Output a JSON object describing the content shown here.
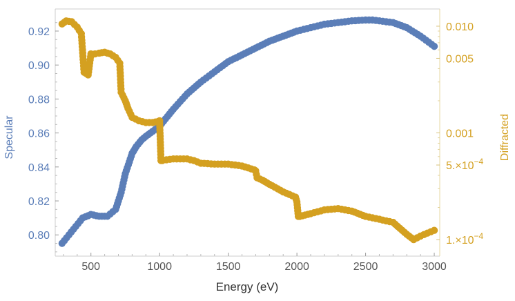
{
  "chart_data": {
    "type": "scatter",
    "title": "",
    "xlabel": "Energy (eV)",
    "ylabel_left": "Specular",
    "ylabel_right": "Diffracted",
    "xlim": [
      240,
      3040
    ],
    "ylim_left": [
      0.7875,
      0.933
    ],
    "ylim_right_log": [
      7e-05,
      0.0145
    ],
    "left_axis_color": "#5b7eb8",
    "right_axis_color": "#d4a020",
    "x_ticks": [
      500,
      1000,
      1500,
      2000,
      2500,
      3000
    ],
    "x_tick_labels": [
      "500",
      "1000",
      "1500",
      "2000",
      "2500",
      "3000"
    ],
    "left_ticks": [
      0.8,
      0.82,
      0.84,
      0.86,
      0.88,
      0.9,
      0.92
    ],
    "left_tick_labels": [
      "0.80",
      "0.82",
      "0.84",
      "0.86",
      "0.88",
      "0.90",
      "0.92"
    ],
    "right_ticks": [
      0.01,
      0.005,
      0.001,
      0.0005,
      0.0001
    ],
    "right_tick_labels": [
      {
        "mantissa": "0.010",
        "exp": ""
      },
      {
        "mantissa": "0.005",
        "exp": ""
      },
      {
        "mantissa": "0.001",
        "exp": ""
      },
      {
        "mantissa": "5.×10",
        "exp": "−4"
      },
      {
        "mantissa": "1.×10",
        "exp": "−4"
      }
    ],
    "series": [
      {
        "name": "Specular",
        "axis": "left",
        "color": "#5b7eb8",
        "x": [
          290,
          340,
          390,
          440,
          500,
          560,
          620,
          680,
          720,
          750,
          780,
          800,
          830,
          870,
          900,
          950,
          1000,
          1100,
          1200,
          1300,
          1400,
          1500,
          1600,
          1700,
          1800,
          1900,
          2000,
          2100,
          2200,
          2300,
          2400,
          2500,
          2550,
          2600,
          2700,
          2800,
          2900,
          3000
        ],
        "y": [
          0.795,
          0.8,
          0.805,
          0.81,
          0.812,
          0.811,
          0.811,
          0.815,
          0.825,
          0.836,
          0.843,
          0.848,
          0.852,
          0.856,
          0.858,
          0.861,
          0.864,
          0.874,
          0.883,
          0.89,
          0.896,
          0.902,
          0.906,
          0.91,
          0.914,
          0.917,
          0.92,
          0.922,
          0.924,
          0.925,
          0.926,
          0.9265,
          0.9265,
          0.926,
          0.925,
          0.922,
          0.917,
          0.911
        ]
      },
      {
        "name": "Diffracted",
        "axis": "right",
        "color": "#d4a020",
        "x": [
          290,
          320,
          360,
          400,
          430,
          450,
          480,
          500,
          530,
          560,
          600,
          640,
          680,
          710,
          720,
          750,
          770,
          800,
          850,
          900,
          950,
          990,
          1000,
          1010,
          1020,
          1050,
          1100,
          1200,
          1250,
          1300,
          1400,
          1500,
          1600,
          1690,
          1700,
          1710,
          1750,
          1800,
          1900,
          1990,
          2000,
          2010,
          2020,
          2100,
          2200,
          2300,
          2400,
          2500,
          2600,
          2700,
          2800,
          2850,
          2900,
          2950,
          3000
        ],
        "y": [
          0.0105,
          0.0112,
          0.011,
          0.0098,
          0.0085,
          0.0037,
          0.0035,
          0.0055,
          0.0055,
          0.0056,
          0.0057,
          0.0055,
          0.0051,
          0.0045,
          0.0024,
          0.002,
          0.0017,
          0.0014,
          0.0013,
          0.00125,
          0.00125,
          0.00128,
          0.0013,
          0.00055,
          0.00055,
          0.00056,
          0.00057,
          0.00057,
          0.00055,
          0.00052,
          0.00051,
          0.00051,
          0.00049,
          0.00045,
          0.00044,
          0.00038,
          0.00036,
          0.00033,
          0.00028,
          0.00025,
          0.000225,
          0.000165,
          0.000165,
          0.000175,
          0.00019,
          0.000195,
          0.000185,
          0.000165,
          0.000155,
          0.000145,
          0.000112,
          0.0001,
          0.000108,
          0.000115,
          0.000122
        ]
      }
    ]
  }
}
